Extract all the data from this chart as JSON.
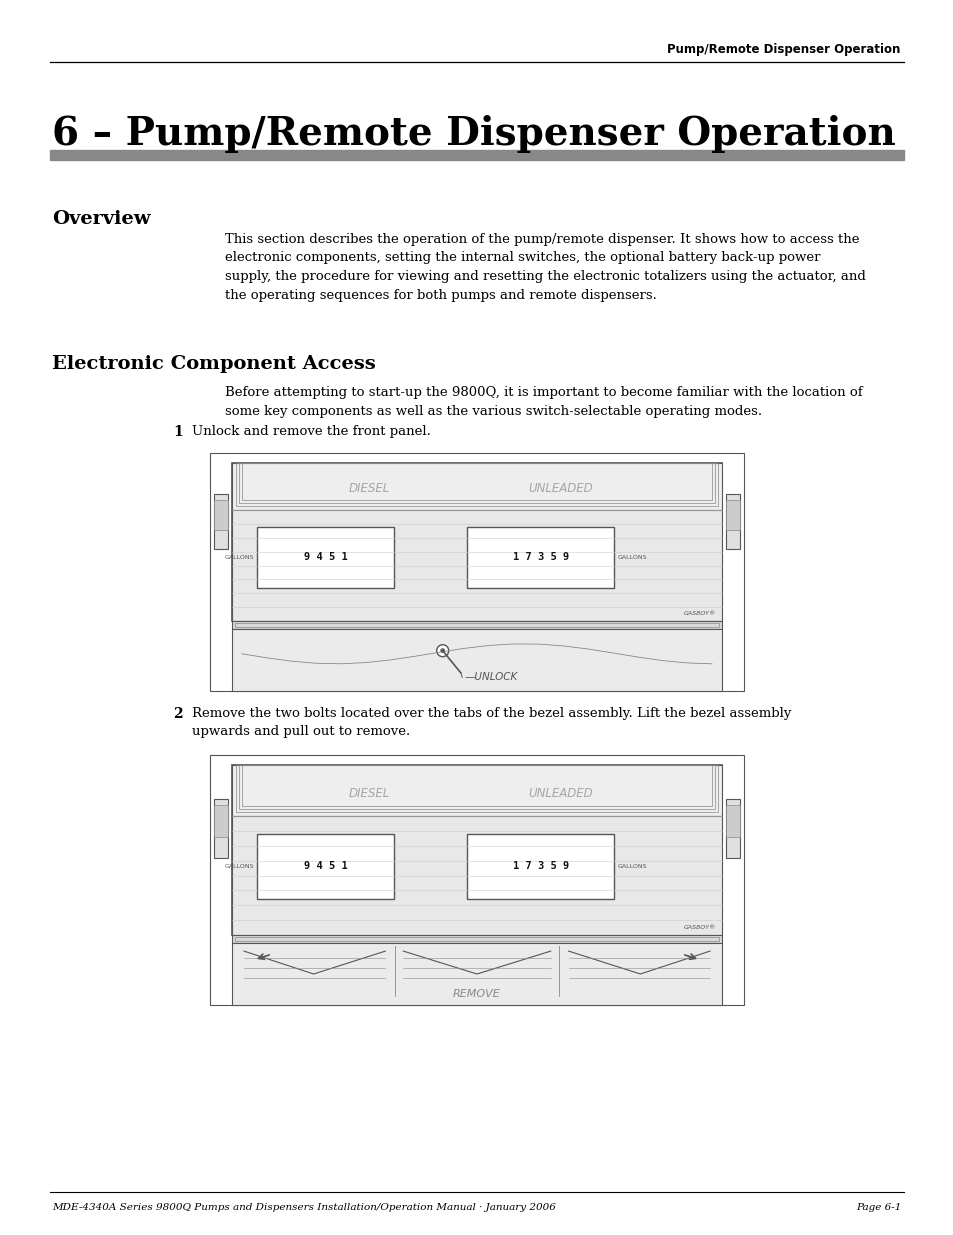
{
  "header_text": "Pump/Remote Dispenser Operation",
  "title": "6 – Pump/Remote Dispenser Operation",
  "section1_heading": "Overview",
  "section1_body": "This section describes the operation of the pump/remote dispenser. It shows how to access the\nelectronic components, setting the internal switches, the optional battery back-up power\nsupply, the procedure for viewing and resetting the electronic totalizers using the actuator, and\nthe operating sequences for both pumps and remote dispensers.",
  "section2_heading": "Electronic Component Access",
  "section2_intro": "Before attempting to start-up the 9800Q, it is important to become familiar with the location of\nsome key components as well as the various switch-selectable operating modes.",
  "step1_num": "1",
  "step1_text": "Unlock and remove the front panel.",
  "step2_num": "2",
  "step2_text": "Remove the two bolts located over the tabs of the bezel assembly. Lift the bezel assembly\nupwards and pull out to remove.",
  "footer_left": "MDE-4340A Series 9800Q Pumps and Dispensers Installation/Operation Manual · January 2006",
  "footer_right": "Page 6-1",
  "bg_color": "#ffffff",
  "text_color": "#000000",
  "gray_bar_color": "#888888",
  "lc": "#555555",
  "lc2": "#888888",
  "fc_outer": "#f0f0f0",
  "fc_inner": "#e8e8e8",
  "fc_lower": "#e4e4e4",
  "fc_display": "#f8f8f8"
}
